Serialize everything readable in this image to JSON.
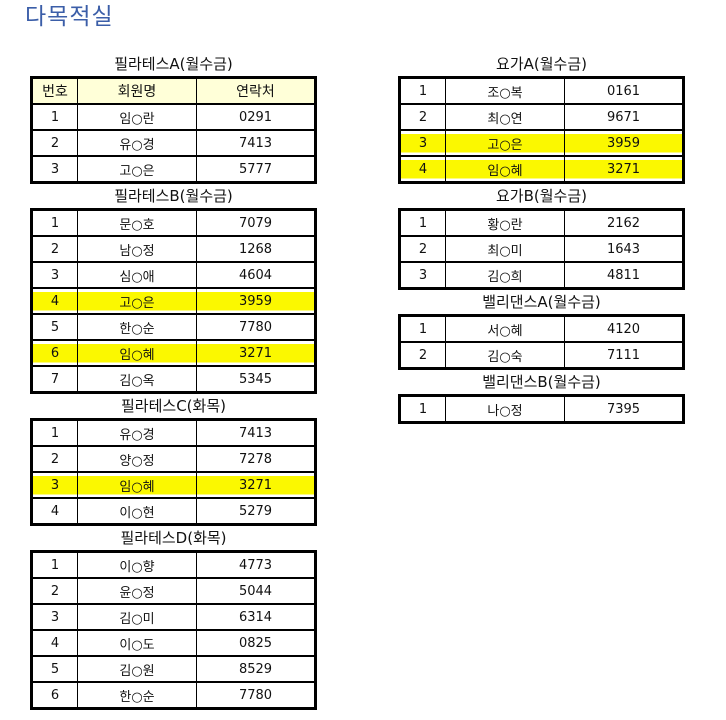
{
  "title": "다목적실",
  "highlight_color": "#fbf800",
  "headers": [
    "번호",
    "회원명",
    "연락처"
  ],
  "left": [
    {
      "caption": "필라테스A(월수금)",
      "show_header": true,
      "rows": [
        {
          "no": "1",
          "name": "임○란",
          "phone": "0291"
        },
        {
          "no": "2",
          "name": "유○경",
          "phone": "7413"
        },
        {
          "no": "3",
          "name": "고○은",
          "phone": "5777"
        }
      ]
    },
    {
      "caption": "필라테스B(월수금)",
      "rows": [
        {
          "no": "1",
          "name": "문○호",
          "phone": "7079"
        },
        {
          "no": "2",
          "name": "남○정",
          "phone": "1268"
        },
        {
          "no": "3",
          "name": "심○애",
          "phone": "4604"
        },
        {
          "no": "4",
          "name": "고○은",
          "phone": "3959",
          "highlighted": true
        },
        {
          "no": "5",
          "name": "한○순",
          "phone": "7780"
        },
        {
          "no": "6",
          "name": "임○혜",
          "phone": "3271",
          "highlighted": true
        },
        {
          "no": "7",
          "name": "김○옥",
          "phone": "5345"
        }
      ]
    },
    {
      "caption": "필라테스C(화목)",
      "rows": [
        {
          "no": "1",
          "name": "유○경",
          "phone": "7413"
        },
        {
          "no": "2",
          "name": "양○정",
          "phone": "7278"
        },
        {
          "no": "3",
          "name": "임○혜",
          "phone": "3271",
          "highlighted": true
        },
        {
          "no": "4",
          "name": "이○현",
          "phone": "5279"
        }
      ]
    },
    {
      "caption": "필라테스D(화목)",
      "rows": [
        {
          "no": "1",
          "name": "이○향",
          "phone": "4773"
        },
        {
          "no": "2",
          "name": "윤○정",
          "phone": "5044"
        },
        {
          "no": "3",
          "name": "김○미",
          "phone": "6314"
        },
        {
          "no": "4",
          "name": "이○도",
          "phone": "0825"
        },
        {
          "no": "5",
          "name": "김○원",
          "phone": "8529"
        },
        {
          "no": "6",
          "name": "한○순",
          "phone": "7780"
        }
      ]
    }
  ],
  "right": [
    {
      "caption": "요가A(월수금)",
      "rows": [
        {
          "no": "1",
          "name": "조○복",
          "phone": "0161"
        },
        {
          "no": "2",
          "name": "최○연",
          "phone": "9671"
        },
        {
          "no": "3",
          "name": "고○은",
          "phone": "3959",
          "highlighted": true
        },
        {
          "no": "4",
          "name": "임○혜",
          "phone": "3271",
          "highlighted": true
        }
      ]
    },
    {
      "caption": "요가B(월수금)",
      "rows": [
        {
          "no": "1",
          "name": "황○란",
          "phone": "2162"
        },
        {
          "no": "2",
          "name": "최○미",
          "phone": "1643"
        },
        {
          "no": "3",
          "name": "김○희",
          "phone": "4811"
        }
      ]
    },
    {
      "caption": "밸리댄스A(월수금)",
      "rows": [
        {
          "no": "1",
          "name": "서○혜",
          "phone": "4120"
        },
        {
          "no": "2",
          "name": "김○숙",
          "phone": "7111"
        }
      ]
    },
    {
      "caption": "밸리댄스B(월수금)",
      "rows": [
        {
          "no": "1",
          "name": "나○정",
          "phone": "7395"
        }
      ]
    }
  ]
}
